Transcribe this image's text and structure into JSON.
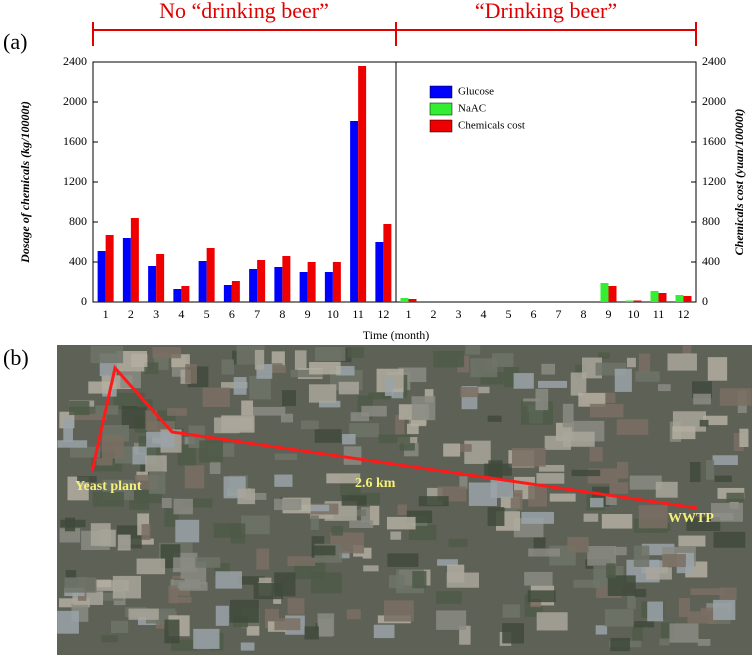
{
  "chart_data": {
    "type": "bar",
    "panel_labels": [
      "(a)",
      "(b)"
    ],
    "annotations": [
      "No “drinking beer”",
      "“Drinking beer”"
    ],
    "xlabel": "Time (month)",
    "ylabel": "Dosage of chemicals (kg/10000t)",
    "y2label": "Chemicals cost  (yuan/10000t)",
    "categories": [
      "1",
      "2",
      "3",
      "4",
      "5",
      "6",
      "7",
      "8",
      "9",
      "10",
      "11",
      "12",
      "1",
      "2",
      "3",
      "4",
      "5",
      "6",
      "7",
      "8",
      "9",
      "10",
      "11",
      "12"
    ],
    "series": [
      {
        "name": "Glucose",
        "color": "#0000ff",
        "values": [
          510,
          640,
          360,
          130,
          410,
          170,
          330,
          350,
          300,
          300,
          1810,
          600,
          null,
          null,
          null,
          null,
          null,
          null,
          null,
          null,
          null,
          null,
          null,
          null
        ]
      },
      {
        "name": "NaAC",
        "color": "#33ee33",
        "values": [
          null,
          null,
          null,
          null,
          null,
          null,
          null,
          null,
          null,
          null,
          null,
          null,
          40,
          0,
          0,
          0,
          0,
          0,
          0,
          0,
          190,
          15,
          110,
          70
        ]
      },
      {
        "name": "Chemicals cost",
        "color": "#ee0000",
        "axis": "y2",
        "values": [
          670,
          840,
          480,
          160,
          540,
          210,
          420,
          460,
          400,
          400,
          2360,
          780,
          30,
          0,
          0,
          0,
          0,
          0,
          0,
          0,
          160,
          15,
          90,
          60
        ]
      }
    ],
    "ylim": [
      0,
      2400
    ],
    "yticks": [
      0,
      400,
      800,
      1200,
      1600,
      2000,
      2400
    ],
    "y2lim": [
      0,
      2400
    ],
    "y2ticks": [
      0,
      400,
      800,
      1200,
      1600,
      2000,
      2400
    ],
    "legend": "upper left"
  },
  "map": {
    "labels": [
      "Yeast plant",
      "2.6 km",
      "WWTP"
    ]
  }
}
